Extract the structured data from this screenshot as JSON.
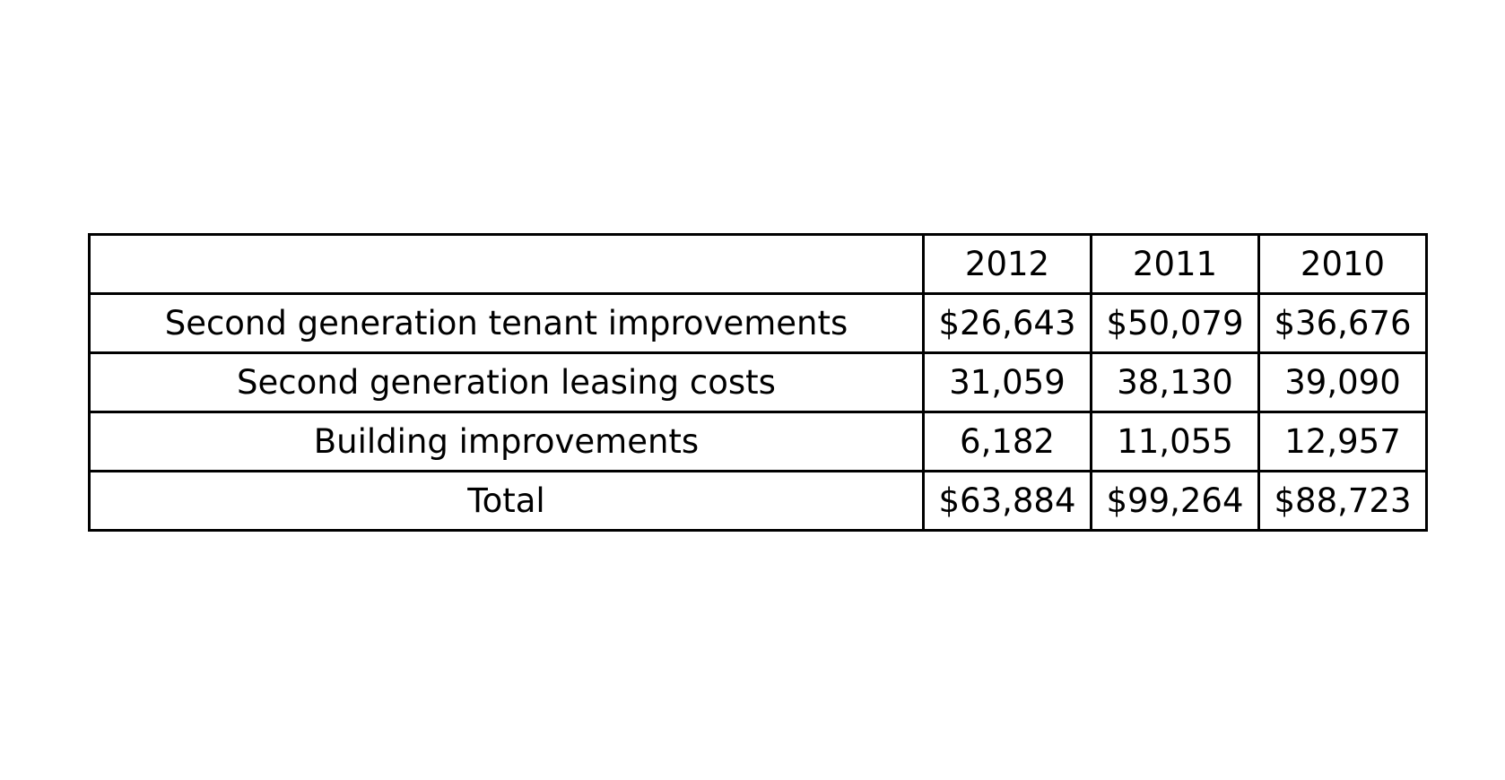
{
  "chart_data": {
    "type": "table",
    "columns": [
      "",
      "2012",
      "2011",
      "2010"
    ],
    "rows": [
      {
        "label": "Second generation tenant improvements",
        "values": [
          "$26,643",
          "$50,079",
          "$36,676"
        ]
      },
      {
        "label": "Second generation leasing costs",
        "values": [
          "31,059",
          "38,130",
          "39,090"
        ]
      },
      {
        "label": "Building improvements",
        "values": [
          "6,182",
          "11,055",
          "12,957"
        ]
      },
      {
        "label": "Total",
        "values": [
          "$63,884",
          "$99,264",
          "$88,723"
        ]
      }
    ]
  }
}
